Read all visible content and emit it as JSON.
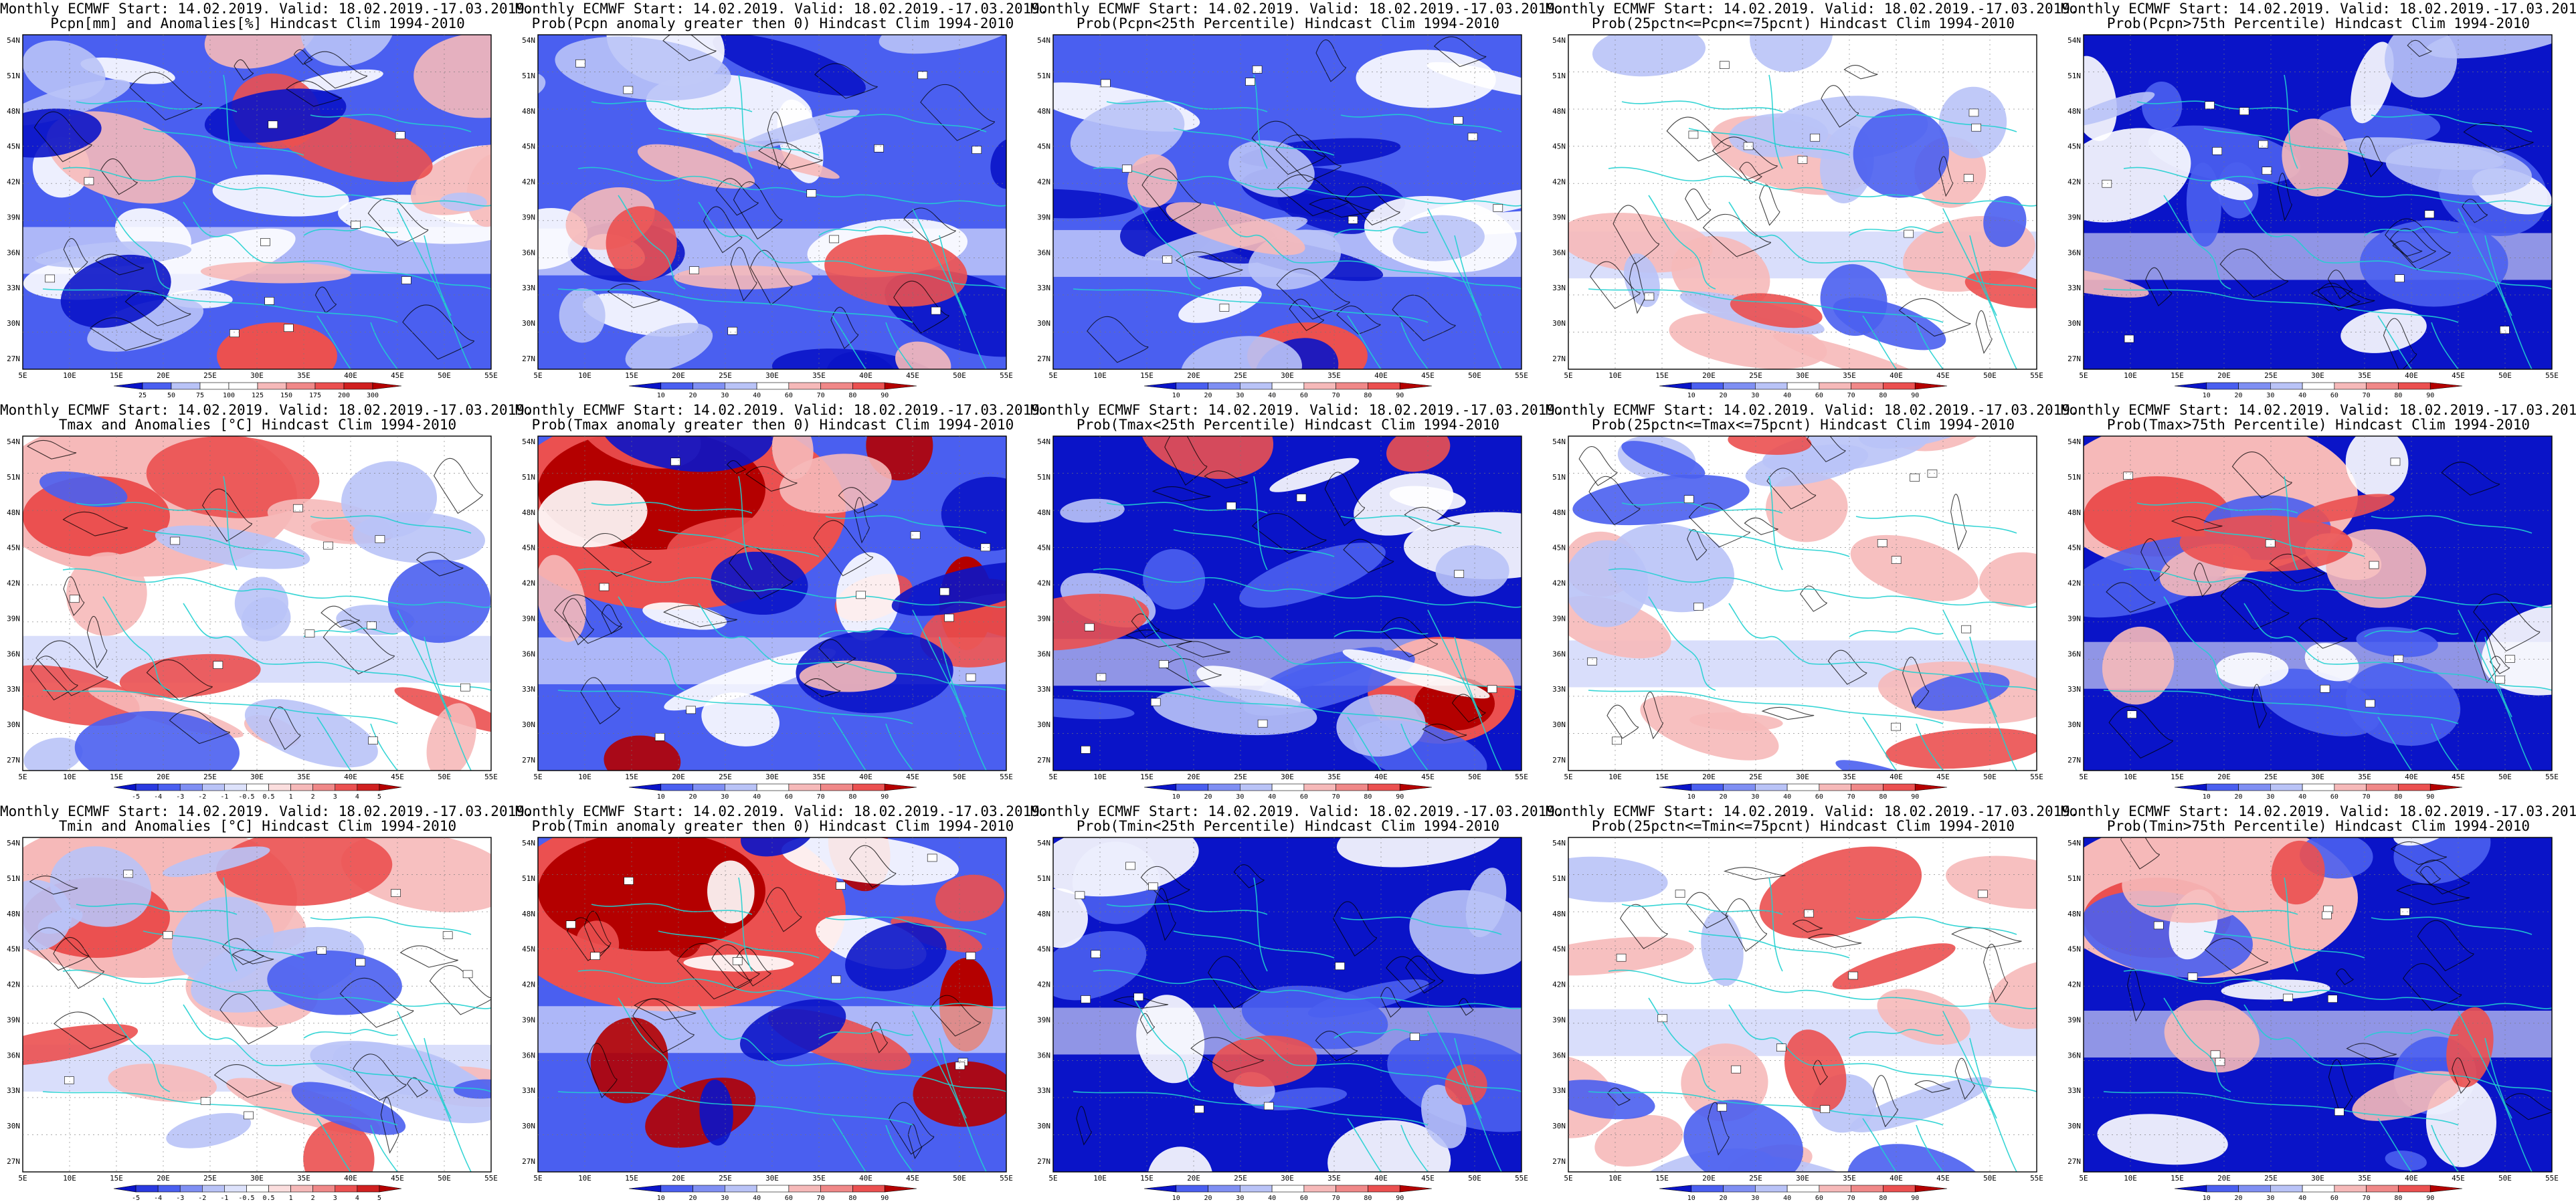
{
  "header_line": "Monthly ECMWF Start: 14.02.2019. Valid: 18.02.2019.-17.03.2019.",
  "lat_labels": [
    "54N",
    "51N",
    "48N",
    "45N",
    "42N",
    "39N",
    "36N",
    "33N",
    "30N",
    "27N"
  ],
  "lon_labels": [
    "5E",
    "10E",
    "15E",
    "20E",
    "25E",
    "30E",
    "35E",
    "40E",
    "45E",
    "50E",
    "55E"
  ],
  "colors": {
    "blue_strong": "#0a14c8",
    "blue_mid": "#4a5ff0",
    "blue_light": "#b9c3f7",
    "white": "#ffffff",
    "red_light": "#f6b9b9",
    "red_mid": "#eb5050",
    "red_strong": "#b40000",
    "coast": "#20d0d0",
    "contour": "#000000"
  },
  "panels": [
    {
      "id": "pcpn-anom",
      "title2": "Pcpn[mm] and Anomalies[%] Hindcast Clim 1994-2010",
      "field": "pcpn-anom",
      "cbar": [
        "25",
        "50",
        "75",
        "100",
        "125",
        "150",
        "175",
        "200",
        "300"
      ]
    },
    {
      "id": "pcpn-prob-pos",
      "title2": "Prob(Pcpn anomaly greater then 0) Hindcast Clim 1994-2010",
      "field": "pcpn-prob-pos",
      "cbar": [
        "10",
        "20",
        "30",
        "40",
        "60",
        "70",
        "80",
        "90"
      ]
    },
    {
      "id": "pcpn-prob-low",
      "title2": "Prob(Pcpn<25th Percentile) Hindcast Clim 1994-2010",
      "field": "pcpn-prob-low",
      "cbar": [
        "10",
        "20",
        "30",
        "40",
        "60",
        "70",
        "80",
        "90"
      ]
    },
    {
      "id": "pcpn-prob-mid",
      "title2": "Prob(25pctn<=Pcpn<=75pcnt) Hindcast Clim 1994-2010",
      "field": "pcpn-prob-mid",
      "cbar": [
        "10",
        "20",
        "30",
        "40",
        "60",
        "70",
        "80",
        "90"
      ]
    },
    {
      "id": "pcpn-prob-high",
      "title2": "Prob(Pcpn>75th Percentile) Hindcast Clim 1994-2010",
      "field": "pcpn-prob-high",
      "cbar": [
        "10",
        "20",
        "30",
        "40",
        "60",
        "70",
        "80",
        "90"
      ]
    },
    {
      "id": "tmax-anom",
      "title2": "Tmax and Anomalies [°C] Hindcast Clim 1994-2010",
      "field": "tmax-anom",
      "cbar": [
        "-5",
        "-4",
        "-3",
        "-2",
        "-1",
        "-0.5",
        "0.5",
        "1",
        "2",
        "3",
        "4",
        "5"
      ]
    },
    {
      "id": "tmax-prob-pos",
      "title2": "Prob(Tmax anomaly greater then 0) Hindcast Clim 1994-2010",
      "field": "tmax-prob-pos",
      "cbar": [
        "10",
        "20",
        "30",
        "40",
        "60",
        "70",
        "80",
        "90"
      ]
    },
    {
      "id": "tmax-prob-low",
      "title2": "Prob(Tmax<25th Percentile) Hindcast Clim 1994-2010",
      "field": "tmax-prob-low",
      "cbar": [
        "10",
        "20",
        "30",
        "40",
        "60",
        "70",
        "80",
        "90"
      ]
    },
    {
      "id": "tmax-prob-mid",
      "title2": "Prob(25pctn<=Tmax<=75pcnt) Hindcast Clim 1994-2010",
      "field": "tmax-prob-mid",
      "cbar": [
        "10",
        "20",
        "30",
        "40",
        "60",
        "70",
        "80",
        "90"
      ]
    },
    {
      "id": "tmax-prob-high",
      "title2": "Prob(Tmax>75th Percentile) Hindcast Clim 1994-2010",
      "field": "tmax-prob-high",
      "cbar": [
        "10",
        "20",
        "30",
        "40",
        "60",
        "70",
        "80",
        "90"
      ]
    },
    {
      "id": "tmin-anom",
      "title2": "Tmin and Anomalies [°C] Hindcast Clim 1994-2010",
      "field": "tmin-anom",
      "cbar": [
        "-5",
        "-4",
        "-3",
        "-2",
        "-1",
        "-0.5",
        "0.5",
        "1",
        "2",
        "3",
        "4",
        "5"
      ]
    },
    {
      "id": "tmin-prob-pos",
      "title2": "Prob(Tmin anomaly greater then 0) Hindcast Clim 1994-2010",
      "field": "tmin-prob-pos",
      "cbar": [
        "10",
        "20",
        "30",
        "40",
        "60",
        "70",
        "80",
        "90"
      ]
    },
    {
      "id": "tmin-prob-low",
      "title2": "Prob(Tmin<25th Percentile) Hindcast Clim 1994-2010",
      "field": "tmin-prob-low",
      "cbar": [
        "10",
        "20",
        "30",
        "40",
        "60",
        "70",
        "80",
        "90"
      ]
    },
    {
      "id": "tmin-prob-mid",
      "title2": "Prob(25pctn<=Tmin<=75pcnt) Hindcast Clim 1994-2010",
      "field": "tmin-prob-mid",
      "cbar": [
        "10",
        "20",
        "30",
        "40",
        "60",
        "70",
        "80",
        "90"
      ]
    },
    {
      "id": "tmin-prob-high",
      "title2": "Prob(Tmin>75th Percentile) Hindcast Clim 1994-2010",
      "field": "tmin-prob-high",
      "cbar": [
        "10",
        "20",
        "30",
        "40",
        "60",
        "70",
        "80",
        "90"
      ]
    }
  ]
}
